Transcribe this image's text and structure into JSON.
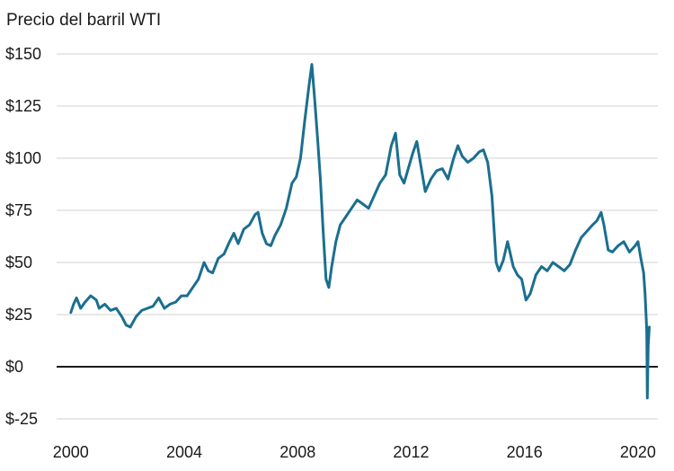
{
  "chart_data": {
    "type": "line",
    "title": "Precio del barril WTI",
    "xlabel": "",
    "ylabel": "",
    "xlim": [
      1999.5,
      2020.7
    ],
    "ylim": [
      -25,
      150
    ],
    "grid": true,
    "legend": "none",
    "line_color": "#1a6f8f",
    "grid_color": "#d0d0d0",
    "zero_line_color": "#1a1a1a",
    "x_ticks": [
      2000,
      2004,
      2008,
      2012,
      2016,
      2020
    ],
    "x_tick_labels": [
      "2000",
      "2004",
      "2008",
      "2012",
      "2016",
      "2020"
    ],
    "y_ticks": [
      -25,
      0,
      25,
      50,
      75,
      100,
      125,
      150
    ],
    "y_tick_labels": [
      "$-25",
      "$0",
      "$25",
      "$50",
      "$75",
      "$100",
      "$125",
      "$150"
    ],
    "series": [
      {
        "x": [
          2000.0,
          2000.1,
          2000.2,
          2000.35,
          2000.5,
          2000.7,
          2000.9,
          2001.0,
          2001.2,
          2001.4,
          2001.6,
          2001.8,
          2001.95,
          2002.1,
          2002.3,
          2002.5,
          2002.7,
          2002.9,
          2003.1,
          2003.3,
          2003.5,
          2003.7,
          2003.9,
          2004.1,
          2004.3,
          2004.5,
          2004.7,
          2004.85,
          2005.0,
          2005.2,
          2005.4,
          2005.6,
          2005.75,
          2005.9,
          2006.1,
          2006.3,
          2006.5,
          2006.6,
          2006.75,
          2006.9,
          2007.05,
          2007.2,
          2007.4,
          2007.6,
          2007.8,
          2007.95,
          2008.1,
          2008.25,
          2008.4,
          2008.5,
          2008.6,
          2008.7,
          2008.8,
          2008.9,
          2009.0,
          2009.1,
          2009.2,
          2009.35,
          2009.5,
          2009.7,
          2009.9,
          2010.1,
          2010.3,
          2010.5,
          2010.7,
          2010.9,
          2011.1,
          2011.3,
          2011.45,
          2011.6,
          2011.75,
          2011.9,
          2012.05,
          2012.2,
          2012.35,
          2012.5,
          2012.7,
          2012.9,
          2013.1,
          2013.3,
          2013.5,
          2013.65,
          2013.8,
          2014.0,
          2014.2,
          2014.4,
          2014.55,
          2014.7,
          2014.85,
          2015.0,
          2015.1,
          2015.25,
          2015.4,
          2015.6,
          2015.75,
          2015.9,
          2016.05,
          2016.2,
          2016.4,
          2016.6,
          2016.8,
          2017.0,
          2017.2,
          2017.4,
          2017.6,
          2017.8,
          2018.0,
          2018.2,
          2018.4,
          2018.55,
          2018.7,
          2018.8,
          2018.95,
          2019.1,
          2019.3,
          2019.5,
          2019.7,
          2019.9,
          2020.0,
          2020.1,
          2020.2,
          2020.25,
          2020.3,
          2020.31,
          2020.33,
          2020.36,
          2020.4
        ],
        "y": [
          26,
          30,
          33,
          28,
          31,
          34,
          32,
          28,
          30,
          27,
          28,
          24,
          20,
          19,
          24,
          27,
          28,
          29,
          33,
          28,
          30,
          31,
          34,
          34,
          38,
          42,
          50,
          46,
          45,
          52,
          54,
          60,
          64,
          59,
          66,
          68,
          73,
          74,
          64,
          59,
          58,
          63,
          68,
          76,
          88,
          91,
          100,
          118,
          135,
          145,
          128,
          110,
          90,
          65,
          42,
          38,
          48,
          60,
          68,
          72,
          76,
          80,
          78,
          76,
          82,
          88,
          92,
          106,
          112,
          92,
          88,
          95,
          102,
          108,
          96,
          84,
          90,
          94,
          95,
          90,
          100,
          106,
          101,
          98,
          100,
          103,
          104,
          98,
          82,
          50,
          46,
          51,
          60,
          48,
          44,
          42,
          32,
          35,
          44,
          48,
          46,
          50,
          48,
          46,
          49,
          56,
          62,
          65,
          68,
          70,
          74,
          68,
          56,
          55,
          58,
          60,
          55,
          58,
          60,
          52,
          45,
          35,
          20,
          16,
          -15,
          10,
          19
        ]
      }
    ]
  }
}
